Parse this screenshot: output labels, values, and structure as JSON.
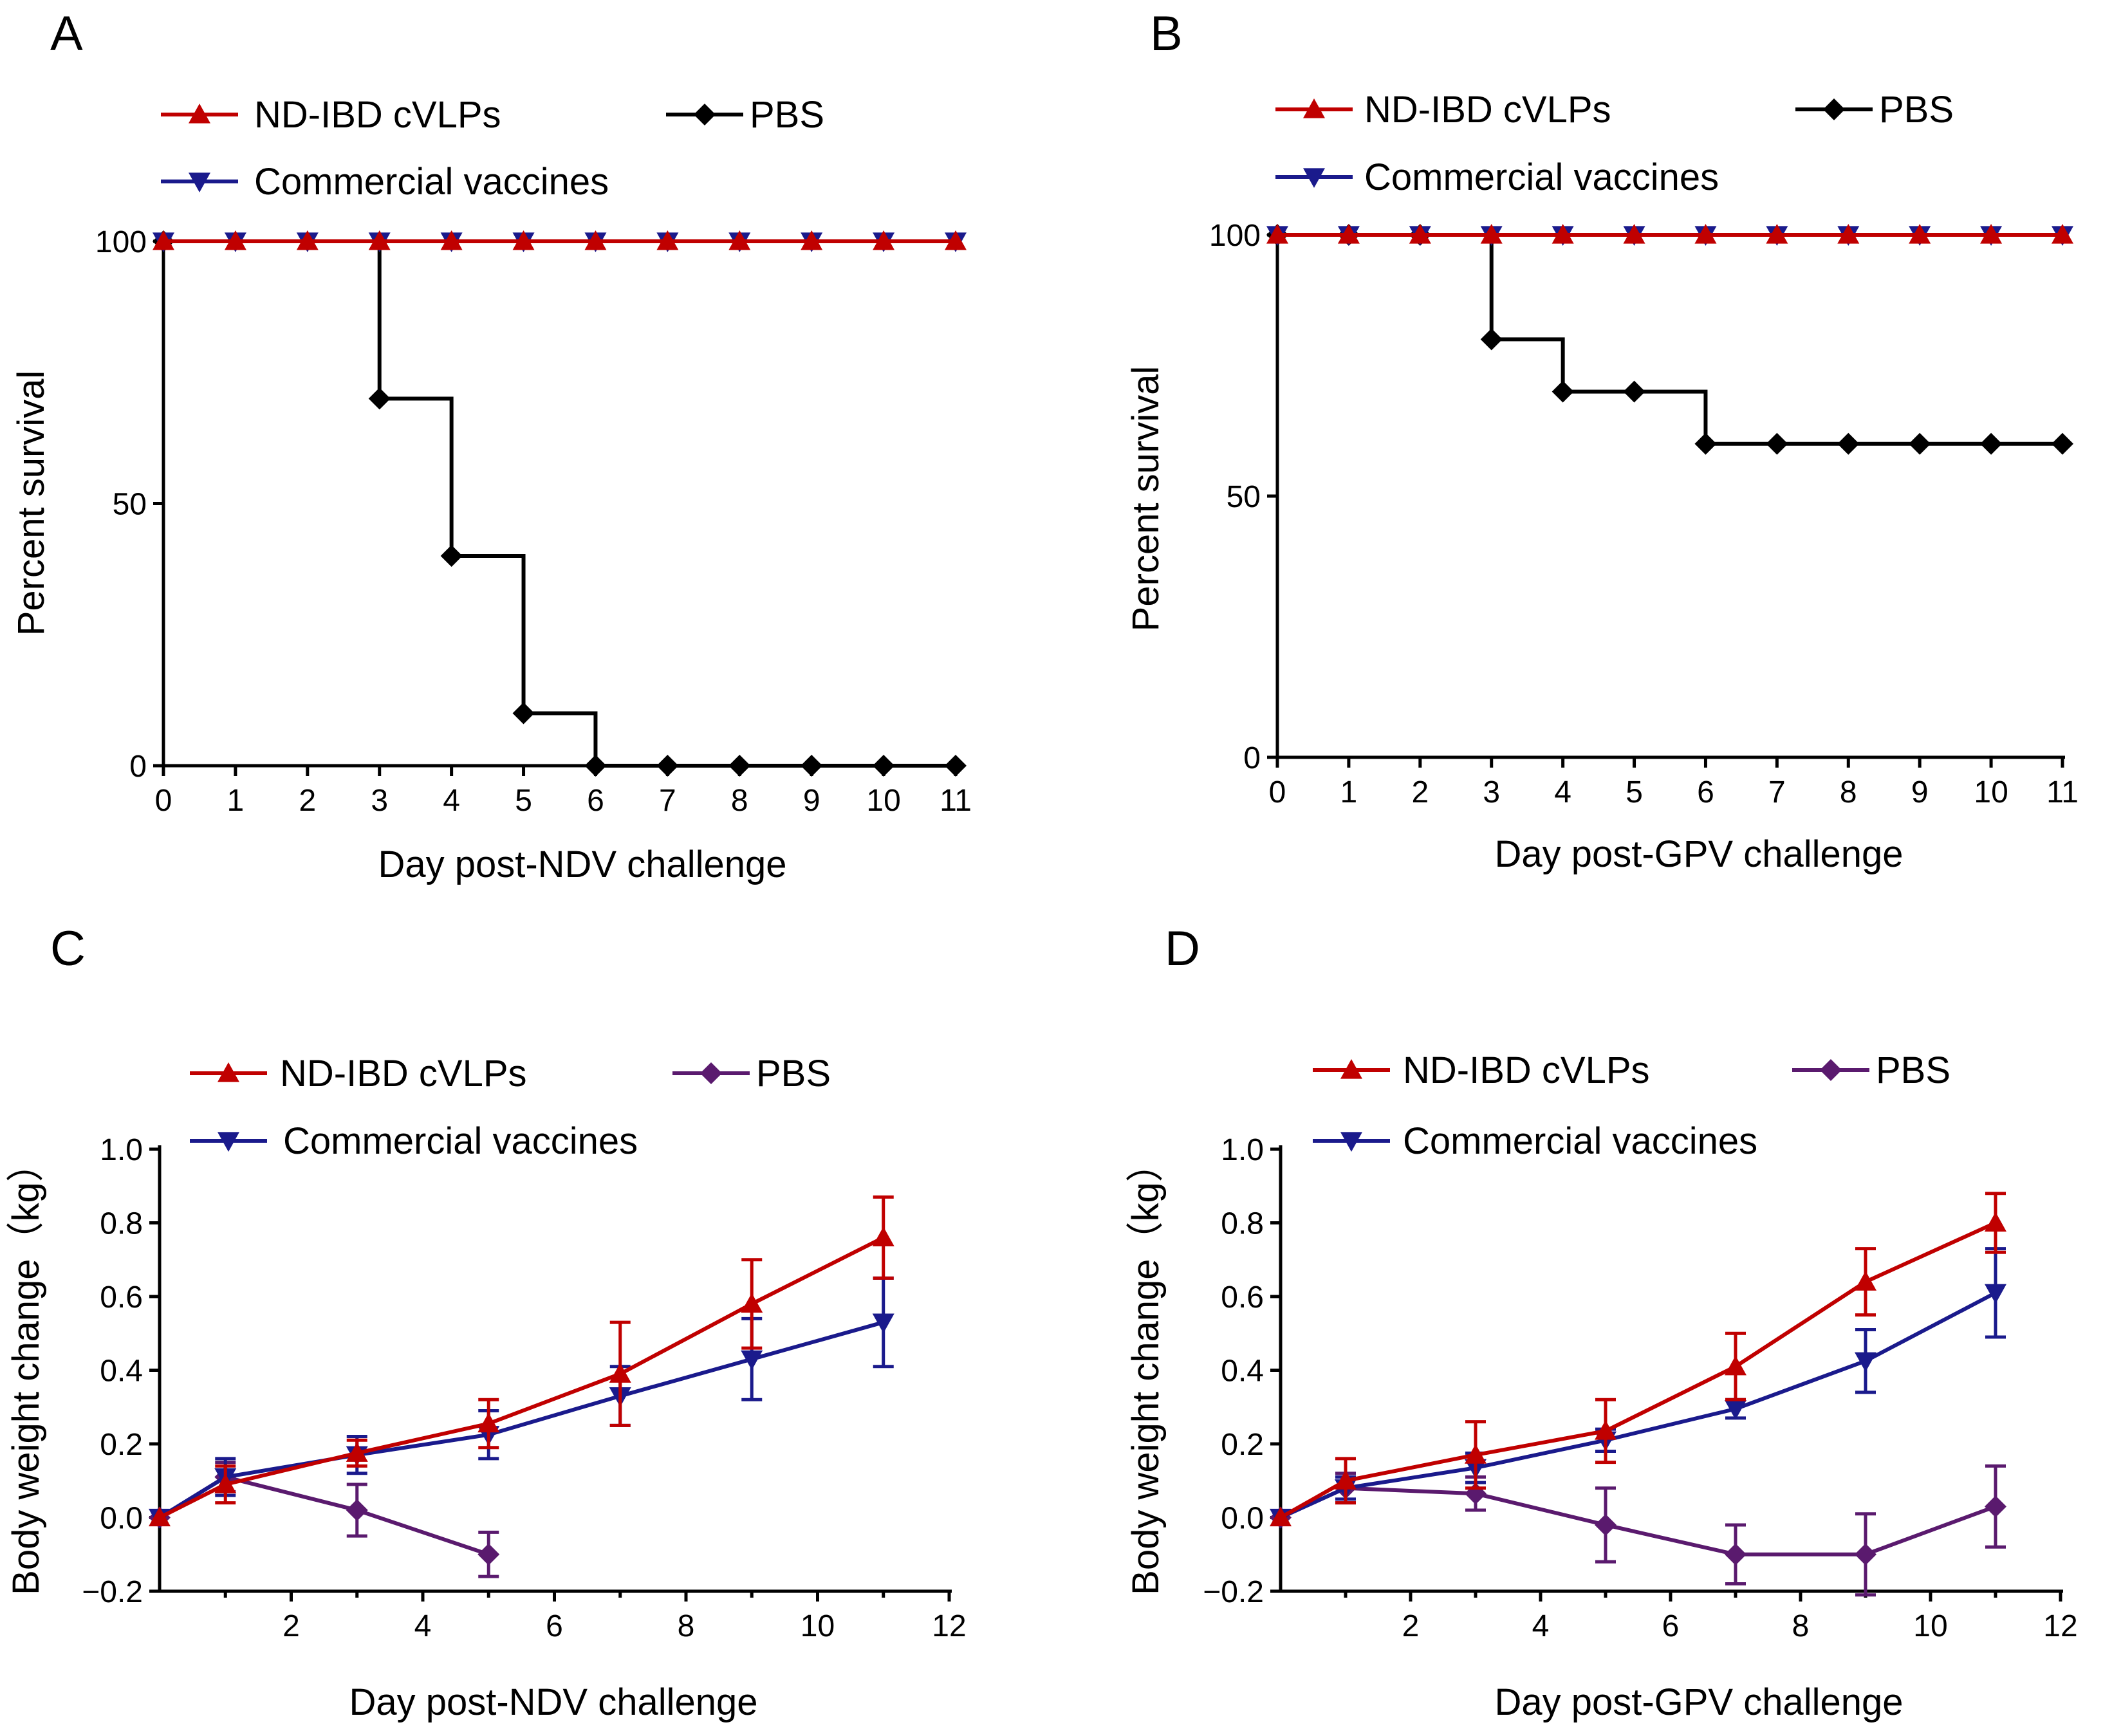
{
  "chart_data": [
    {
      "panel": "A",
      "type": "line",
      "subtype": "survival-step",
      "xlabel": "Day post-NDV challenge",
      "ylabel": "Percent survival",
      "xlim": [
        0,
        11
      ],
      "ylim": [
        0,
        100
      ],
      "xticks": [
        "0",
        "1",
        "2",
        "3",
        "4",
        "5",
        "6",
        "7",
        "8",
        "9",
        "10",
        "11"
      ],
      "yticks": [
        "0",
        "50",
        "100"
      ],
      "legend": [
        "ND-IBD cVLPs",
        "PBS",
        "Commercial vaccines"
      ],
      "series": [
        {
          "name": "ND-IBD cVLPs",
          "color": "#c00000",
          "marker": "triangle-up",
          "x": [
            0,
            1,
            2,
            3,
            4,
            5,
            6,
            7,
            8,
            9,
            10,
            11
          ],
          "y": [
            100,
            100,
            100,
            100,
            100,
            100,
            100,
            100,
            100,
            100,
            100,
            100
          ]
        },
        {
          "name": "Commercial vaccines",
          "color": "#1a1a8c",
          "marker": "triangle-down",
          "x": [
            0,
            1,
            2,
            3,
            4,
            5,
            6,
            7,
            8,
            9,
            10,
            11
          ],
          "y": [
            100,
            100,
            100,
            100,
            100,
            100,
            100,
            100,
            100,
            100,
            100,
            100
          ]
        },
        {
          "name": "PBS",
          "color": "#000000",
          "marker": "diamond",
          "x": [
            0,
            3,
            4,
            5,
            6,
            7,
            8,
            9,
            10,
            11
          ],
          "y": [
            100,
            70,
            40,
            10,
            0,
            0,
            0,
            0,
            0,
            0
          ]
        }
      ]
    },
    {
      "panel": "B",
      "type": "line",
      "subtype": "survival-step",
      "xlabel": "Day post-GPV challenge",
      "ylabel": "Percent survival",
      "xlim": [
        0,
        11
      ],
      "ylim": [
        0,
        100
      ],
      "xticks": [
        "0",
        "1",
        "2",
        "3",
        "4",
        "5",
        "6",
        "7",
        "8",
        "9",
        "10",
        "11"
      ],
      "yticks": [
        "0",
        "50",
        "100"
      ],
      "legend": [
        "ND-IBD cVLPs",
        "PBS",
        "Commercial vaccines"
      ],
      "series": [
        {
          "name": "ND-IBD cVLPs",
          "color": "#c00000",
          "marker": "triangle-up",
          "x": [
            0,
            1,
            2,
            3,
            4,
            5,
            6,
            7,
            8,
            9,
            10,
            11
          ],
          "y": [
            100,
            100,
            100,
            100,
            100,
            100,
            100,
            100,
            100,
            100,
            100,
            100
          ]
        },
        {
          "name": "Commercial vaccines",
          "color": "#1a1a8c",
          "marker": "triangle-down",
          "x": [
            0,
            1,
            2,
            3,
            4,
            5,
            6,
            7,
            8,
            9,
            10,
            11
          ],
          "y": [
            100,
            100,
            100,
            100,
            100,
            100,
            100,
            100,
            100,
            100,
            100,
            100
          ]
        },
        {
          "name": "PBS",
          "color": "#000000",
          "marker": "diamond",
          "x": [
            0,
            1,
            2,
            3,
            4,
            5,
            6,
            7,
            8,
            9,
            10,
            11
          ],
          "y": [
            100,
            100,
            100,
            80,
            70,
            70,
            60,
            60,
            60,
            60,
            60,
            60
          ]
        }
      ]
    },
    {
      "panel": "C",
      "type": "line",
      "xlabel": "Day post-NDV challenge",
      "ylabel": "Body weight change（kg）",
      "xlim": [
        0,
        12
      ],
      "ylim": [
        -0.2,
        1.0
      ],
      "xticks": [
        "2",
        "4",
        "6",
        "8",
        "10",
        "12"
      ],
      "yticks": [
        "−0.2",
        "0.0",
        "0.2",
        "0.4",
        "0.6",
        "0.8",
        "1.0"
      ],
      "legend": [
        "ND-IBD cVLPs",
        "PBS",
        "Commercial vaccines"
      ],
      "series": [
        {
          "name": "ND-IBD cVLPs",
          "color": "#c00000",
          "marker": "triangle-up",
          "x": [
            0,
            1,
            3,
            5,
            7,
            9,
            11
          ],
          "y": [
            0,
            0.09,
            0.175,
            0.255,
            0.39,
            0.58,
            0.76
          ],
          "err": [
            0,
            0.05,
            0.035,
            0.065,
            0.14,
            0.12,
            0.11
          ]
        },
        {
          "name": "Commercial vaccines",
          "color": "#1a1a8c",
          "marker": "triangle-down",
          "x": [
            0,
            1,
            3,
            5,
            7,
            9,
            11
          ],
          "y": [
            0,
            0.11,
            0.17,
            0.225,
            0.33,
            0.43,
            0.53
          ],
          "err": [
            0,
            0.05,
            0.05,
            0.065,
            0.08,
            0.11,
            0.12
          ]
        },
        {
          "name": "PBS",
          "color": "#5a1a6e",
          "marker": "diamond",
          "x": [
            0,
            1,
            3,
            5
          ],
          "y": [
            0,
            0.11,
            0.02,
            -0.1
          ],
          "err": [
            0,
            0.04,
            0.07,
            0.06
          ]
        }
      ]
    },
    {
      "panel": "D",
      "type": "line",
      "xlabel": "Day post-GPV challenge",
      "ylabel": "Body weight change（kg）",
      "xlim": [
        0,
        12
      ],
      "ylim": [
        -0.2,
        1.0
      ],
      "xticks": [
        "2",
        "4",
        "6",
        "8",
        "10",
        "12"
      ],
      "yticks": [
        "−0.2",
        "0.0",
        "0.2",
        "0.4",
        "0.6",
        "0.8",
        "1.0"
      ],
      "legend": [
        "ND-IBD cVLPs",
        "PBS",
        "Commercial vaccines"
      ],
      "series": [
        {
          "name": "ND-IBD cVLPs",
          "color": "#c00000",
          "marker": "triangle-up",
          "x": [
            0,
            1,
            3,
            5,
            7,
            9,
            11
          ],
          "y": [
            0,
            0.1,
            0.17,
            0.235,
            0.41,
            0.64,
            0.8
          ],
          "err": [
            0,
            0.06,
            0.09,
            0.085,
            0.09,
            0.09,
            0.08
          ]
        },
        {
          "name": "Commercial vaccines",
          "color": "#1a1a8c",
          "marker": "triangle-down",
          "x": [
            0,
            1,
            3,
            5,
            7,
            9,
            11
          ],
          "y": [
            0,
            0.08,
            0.135,
            0.21,
            0.295,
            0.425,
            0.61
          ],
          "err": [
            0,
            0.03,
            0.04,
            0.03,
            0.025,
            0.085,
            0.12
          ]
        },
        {
          "name": "PBS",
          "color": "#5a1a6e",
          "marker": "diamond",
          "x": [
            0,
            1,
            3,
            5,
            7,
            9,
            11
          ],
          "y": [
            0,
            0.08,
            0.065,
            -0.02,
            -0.1,
            -0.1,
            0.03
          ],
          "err": [
            0,
            0.04,
            0.045,
            0.1,
            0.08,
            0.11,
            0.11
          ]
        }
      ]
    }
  ]
}
